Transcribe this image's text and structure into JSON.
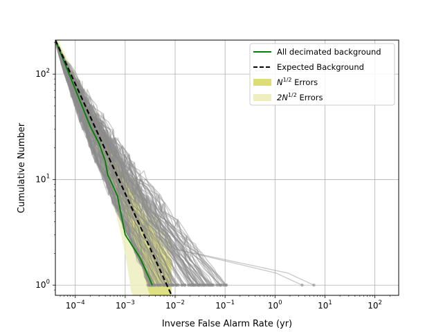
{
  "chart_data": {
    "type": "line",
    "xlabel": "Inverse False Alarm Rate (yr)",
    "ylabel": "Cumulative Number",
    "x_scale": "log",
    "y_scale": "log",
    "xlim": [
      4e-05,
      300
    ],
    "ylim": [
      0.8,
      210
    ],
    "grid": true,
    "legend_placement": "top-right",
    "x_ticks": [
      {
        "value": 0.0001,
        "base": "10",
        "exp": "−4"
      },
      {
        "value": 0.001,
        "base": "10",
        "exp": "−3"
      },
      {
        "value": 0.01,
        "base": "10",
        "exp": "−2"
      },
      {
        "value": 0.1,
        "base": "10",
        "exp": "−1"
      },
      {
        "value": 1,
        "base": "10",
        "exp": "0"
      },
      {
        "value": 10,
        "base": "10",
        "exp": "1"
      },
      {
        "value": 100,
        "base": "10",
        "exp": "2"
      }
    ],
    "y_ticks": [
      {
        "value": 1,
        "base": "10",
        "exp": "0"
      },
      {
        "value": 10,
        "base": "10",
        "exp": "1"
      },
      {
        "value": 100,
        "base": "10",
        "exp": "2"
      }
    ],
    "legend": [
      {
        "kind": "line",
        "color": "#008000",
        "dashed": false,
        "label_text": "All decimated background"
      },
      {
        "kind": "line",
        "color": "#000000",
        "dashed": true,
        "label_text": "Expected Background"
      },
      {
        "kind": "patch",
        "color": "#dcdc78",
        "label_pre": "N",
        "label_sup": "1/2",
        "label_post": " Errors"
      },
      {
        "kind": "patch",
        "color": "#eeeec0",
        "label_pre": "2N",
        "label_sup": "1/2",
        "label_post": " Errors"
      }
    ],
    "series": [
      {
        "name": "All decimated background",
        "color": "#008000",
        "points": [
          [
            4e-05,
            210
          ],
          [
            0.0001,
            72
          ],
          [
            0.0002,
            32
          ],
          [
            0.0003,
            22
          ],
          [
            0.0004,
            15
          ],
          [
            0.00045,
            11
          ],
          [
            0.0005,
            10
          ],
          [
            0.0007,
            7
          ],
          [
            0.001,
            3
          ],
          [
            0.002,
            1.8
          ],
          [
            0.0035,
            1
          ]
        ]
      },
      {
        "name": "Expected Background",
        "color": "#000000",
        "dashed": true,
        "points": [
          [
            4e-05,
            210
          ],
          [
            0.0085,
            0.8
          ]
        ]
      }
    ],
    "background_trials": {
      "color": "#8c8c8c",
      "count": 120,
      "start": [
        4e-05,
        210
      ],
      "anchor_fit": [
        [
          4e-05,
          210
        ],
        [
          0.0001,
          75
        ],
        [
          0.0003,
          28
        ]
      ],
      "x_at_1_range": [
        0.002,
        0.5
      ],
      "outliers_x_at_1": [
        3.5,
        6.0
      ]
    },
    "error_bands": {
      "sqrtN_color": "#dcdc78",
      "twoSqrtN_color": "#eeeec0",
      "expected_line": [
        [
          4e-05,
          210
        ],
        [
          0.0085,
          0.8
        ]
      ]
    }
  }
}
